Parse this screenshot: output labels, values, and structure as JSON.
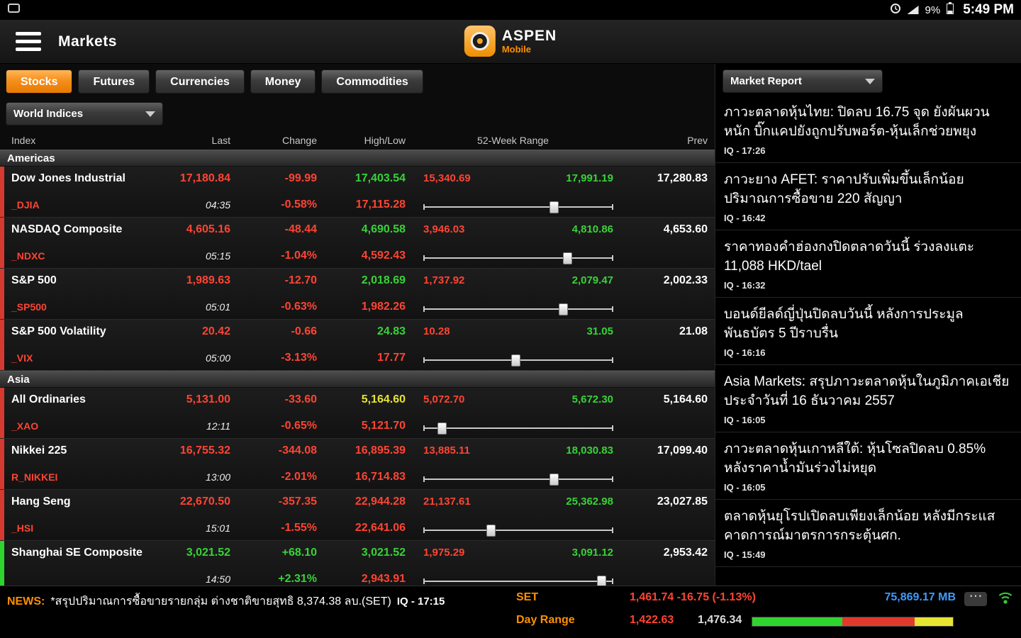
{
  "colors": {
    "accent_orange": "#ff9000",
    "down_red": "#ff4433",
    "up_green": "#37d337",
    "flat_yellow": "#e6e433",
    "link_blue": "#3e9bff"
  },
  "status_bar": {
    "battery_pct": "9%",
    "time": "5:49 PM"
  },
  "header": {
    "title": "Markets",
    "logo_name": "ASPEN",
    "logo_sub": "Mobile"
  },
  "tabs": [
    {
      "label": "Stocks",
      "active": true
    },
    {
      "label": "Futures",
      "active": false
    },
    {
      "label": "Currencies",
      "active": false
    },
    {
      "label": "Money",
      "active": false
    },
    {
      "label": "Commodities",
      "active": false
    }
  ],
  "indices_panel": {
    "filter_label": "World Indices",
    "columns": [
      "Index",
      "Last",
      "Change",
      "High/Low",
      "52-Week Range",
      "Prev"
    ],
    "sections": [
      {
        "name": "Americas",
        "rows": [
          {
            "name": "Dow Jones Industrial",
            "symbol": "_DJIA",
            "time": "04:35",
            "last": "17,180.84",
            "change": "-99.99",
            "change_pct": "-0.58%",
            "high": "17,403.54",
            "low": "17,115.28",
            "range_low": "15,340.69",
            "range_high": "17,991.19",
            "prev": "17,280.83",
            "direction": "down",
            "high_state": "up",
            "slider_pos": 0.69
          },
          {
            "name": "NASDAQ Composite",
            "symbol": "_NDXC",
            "time": "05:15",
            "last": "4,605.16",
            "change": "-48.44",
            "change_pct": "-1.04%",
            "high": "4,690.58",
            "low": "4,592.43",
            "range_low": "3,946.03",
            "range_high": "4,810.86",
            "prev": "4,653.60",
            "direction": "down",
            "high_state": "up",
            "slider_pos": 0.76
          },
          {
            "name": "S&P 500",
            "symbol": "_SP500",
            "time": "05:01",
            "last": "1,989.63",
            "change": "-12.70",
            "change_pct": "-0.63%",
            "high": "2,018.69",
            "low": "1,982.26",
            "range_low": "1,737.92",
            "range_high": "2,079.47",
            "prev": "2,002.33",
            "direction": "down",
            "high_state": "up",
            "slider_pos": 0.74
          },
          {
            "name": "S&P 500 Volatility",
            "symbol": "_VIX",
            "time": "05:00",
            "last": "20.42",
            "change": "-0.66",
            "change_pct": "-3.13%",
            "high": "24.83",
            "low": "17.77",
            "range_low": "10.28",
            "range_high": "31.05",
            "prev": "21.08",
            "direction": "down",
            "high_state": "up",
            "slider_pos": 0.49
          }
        ]
      },
      {
        "name": "Asia",
        "rows": [
          {
            "name": "All Ordinaries",
            "symbol": "_XAO",
            "time": "12:11",
            "last": "5,131.00",
            "change": "-33.60",
            "change_pct": "-0.65%",
            "high": "5,164.60",
            "low": "5,121.70",
            "range_low": "5,072.70",
            "range_high": "5,672.30",
            "prev": "5,164.60",
            "direction": "down",
            "high_state": "flat",
            "slider_pos": 0.1
          },
          {
            "name": "Nikkei 225",
            "symbol": "R_NIKKEI",
            "time": "13:00",
            "last": "16,755.32",
            "change": "-344.08",
            "change_pct": "-2.01%",
            "high": "16,895.39",
            "low": "16,714.83",
            "range_low": "13,885.11",
            "range_high": "18,030.83",
            "prev": "17,099.40",
            "direction": "down",
            "high_state": "down",
            "slider_pos": 0.69
          },
          {
            "name": "Hang Seng",
            "symbol": "_HSI",
            "time": "15:01",
            "last": "22,670.50",
            "change": "-357.35",
            "change_pct": "-1.55%",
            "high": "22,944.28",
            "low": "22,641.06",
            "range_low": "21,137.61",
            "range_high": "25,362.98",
            "prev": "23,027.85",
            "direction": "down",
            "high_state": "down",
            "slider_pos": 0.36
          },
          {
            "name": "Shanghai SE Composite",
            "symbol": "",
            "time": "14:50",
            "last": "3,021.52",
            "change": "+68.10",
            "change_pct": "+2.31%",
            "high": "3,021.52",
            "low": "2,943.91",
            "range_low": "1,975.29",
            "range_high": "3,091.12",
            "prev": "2,953.42",
            "direction": "up",
            "high_state": "up",
            "slider_pos": 0.94
          }
        ]
      }
    ]
  },
  "news_panel": {
    "title": "Market Report",
    "items": [
      {
        "text": "ภาวะตลาดหุ้นไทย: ปิดลบ 16.75 จุด ยังผันผวนหนัก บิ๊กแคปยังถูกปรับพอร์ต-หุ้นเล็กช่วยพยุง",
        "time": "IQ - 17:26"
      },
      {
        "text": "ภาวะยาง AFET: ราคาปรับเพิ่มขึ้นเล็กน้อย ปริมาณการซื้อขาย 220 สัญญา",
        "time": "IQ - 16:42"
      },
      {
        "text": "ราคาทองคำฮ่องกงปิดตลาดวันนี้ ร่วงลงแตะ 11,088 HKD/tael",
        "time": "IQ - 16:32"
      },
      {
        "text": "บอนด์ยีลด์ญี่ปุ่นปิดลบวันนี้ หลังการประมูลพันธบัตร 5 ปีราบรื่น",
        "time": "IQ - 16:16"
      },
      {
        "text": "Asia Markets: สรุปภาวะตลาดหุ้นในภูมิภาคเอเชียประจำวันที่ 16 ธันวาคม 2557",
        "time": "IQ - 16:05"
      },
      {
        "text": "ภาวะตลาดหุ้นเกาหลีใต้: หุ้นโซลปิดลบ 0.85% หลังราคาน้ำมันร่วงไม่หยุด",
        "time": "IQ - 16:05"
      },
      {
        "text": "ตลาดหุ้นยุโรปเปิดลบเพียงเล็กน้อย หลังมีกระแสคาดการณ์มาตรการกระตุ้นศก.",
        "time": "IQ - 15:49"
      }
    ]
  },
  "bottom_bar": {
    "news_label": "NEWS:",
    "news_text": "*สรุปปริมาณการซื้อขายรายกลุ่ม ต่างชาติขายสุทธิ 8,374.38 ลบ.(SET)",
    "news_time": "IQ - 17:15",
    "set_label": "SET",
    "set_value": "1,461.74 -16.75 (-1.13%)",
    "volume": "75,869.17 MB",
    "day_range_label": "Day Range",
    "day_low": "1,422.63",
    "day_high": "1,476.34",
    "gauge": [
      {
        "color": "#2fd42f",
        "width_pct": 45
      },
      {
        "color": "#e03a2f",
        "width_pct": 36
      },
      {
        "color": "#e8e431",
        "width_pct": 19
      }
    ],
    "more_label": "⋯"
  }
}
